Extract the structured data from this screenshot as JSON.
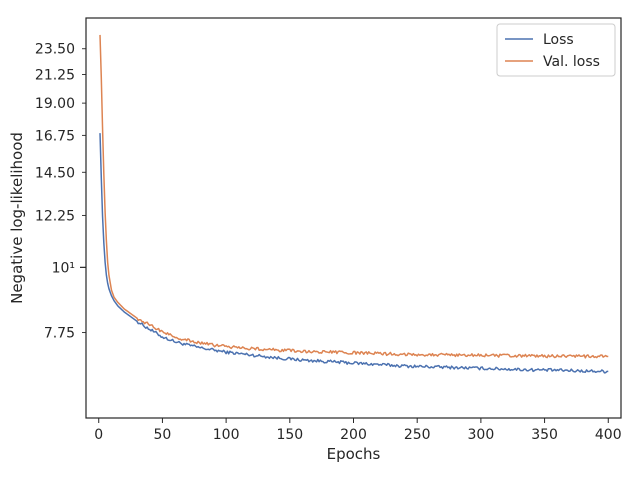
{
  "chart_data": {
    "type": "line",
    "xlabel": "Epochs",
    "ylabel": "Negative log-likelihood",
    "xlim": [
      -10,
      410
    ],
    "ylim": [
      5.55,
      26.5
    ],
    "yscale": "log",
    "xticks": [
      0,
      50,
      100,
      150,
      200,
      250,
      300,
      350,
      400
    ],
    "xtick_labels": [
      "0",
      "50",
      "100",
      "150",
      "200",
      "250",
      "300",
      "350",
      "400"
    ],
    "yticks": [
      7.75,
      10,
      12.25,
      14.5,
      16.75,
      19.0,
      21.25,
      23.5
    ],
    "ytick_labels": [
      "7.75",
      "10¹",
      "12.25",
      "14.50",
      "16.75",
      "19.00",
      "21.25",
      "23.50"
    ],
    "grid": false,
    "legend_position": "top-right",
    "series": [
      {
        "name": "Loss",
        "color": "#4c72b0",
        "x": [
          1,
          2,
          3,
          4,
          5,
          6,
          7,
          8,
          10,
          12,
          15,
          20,
          25,
          30,
          40,
          50,
          60,
          70,
          80,
          90,
          100,
          120,
          140,
          160,
          180,
          200,
          220,
          240,
          260,
          280,
          300,
          320,
          340,
          360,
          380,
          400
        ],
        "y": [
          16.9,
          14.2,
          12.2,
          11.0,
          10.2,
          9.7,
          9.4,
          9.2,
          8.95,
          8.78,
          8.6,
          8.4,
          8.25,
          8.1,
          7.85,
          7.62,
          7.48,
          7.38,
          7.3,
          7.24,
          7.18,
          7.1,
          7.02,
          6.96,
          6.92,
          6.88,
          6.84,
          6.8,
          6.78,
          6.76,
          6.74,
          6.72,
          6.7,
          6.69,
          6.67,
          6.66
        ]
      },
      {
        "name": "Val. loss",
        "color": "#dd8452",
        "x": [
          1,
          2,
          3,
          4,
          5,
          6,
          7,
          8,
          10,
          12,
          15,
          20,
          25,
          30,
          40,
          50,
          60,
          70,
          80,
          90,
          100,
          120,
          140,
          160,
          180,
          200,
          220,
          240,
          260,
          280,
          300,
          320,
          340,
          360,
          380,
          400
        ],
        "y": [
          24.8,
          21.0,
          17.2,
          14.4,
          12.4,
          11.1,
          10.2,
          9.7,
          9.15,
          8.9,
          8.72,
          8.5,
          8.35,
          8.2,
          7.98,
          7.78,
          7.62,
          7.52,
          7.44,
          7.38,
          7.34,
          7.28,
          7.24,
          7.2,
          7.18,
          7.16,
          7.14,
          7.12,
          7.11,
          7.1,
          7.09,
          7.08,
          7.07,
          7.07,
          7.06,
          7.06
        ]
      }
    ]
  }
}
